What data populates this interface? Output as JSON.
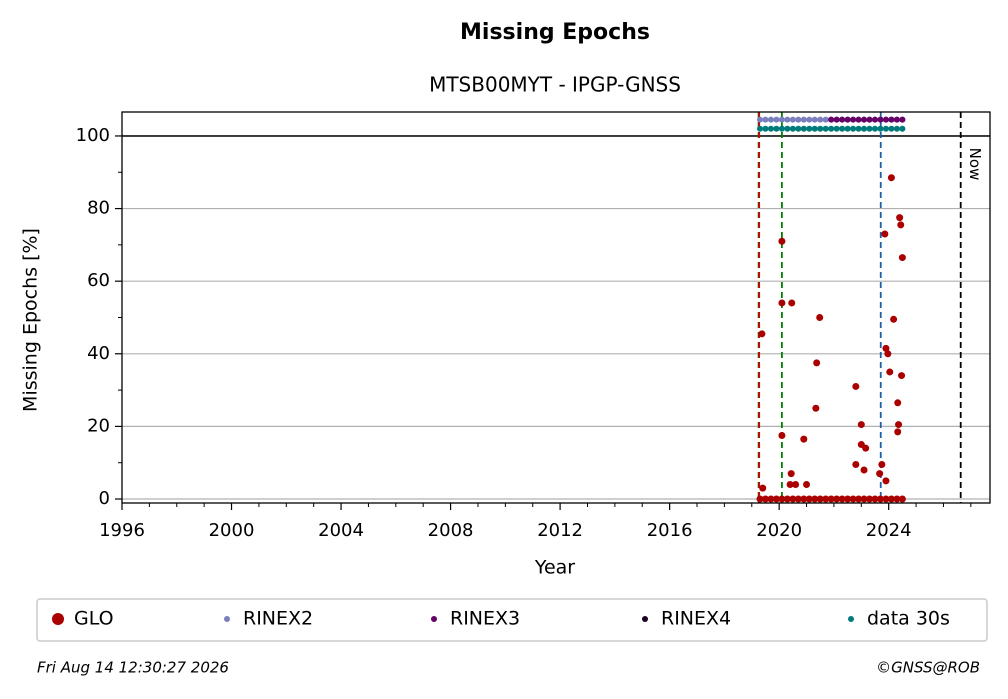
{
  "chart_data": {
    "type": "scatter",
    "title": "Missing Epochs",
    "subtitle": "MTSB00MYT - IPGP-GNSS",
    "x_label": "Year",
    "y_label": "Missing Epochs [%]",
    "xlim": [
      1996,
      2027.7
    ],
    "ylim": [
      -1.1,
      106.6
    ],
    "xticks": [
      1996,
      2000,
      2004,
      2008,
      2012,
      2016,
      2020,
      2024
    ],
    "xminorticks": [
      1997,
      1998,
      1999,
      2001,
      2002,
      2003,
      2005,
      2006,
      2007,
      2009,
      2010,
      2011,
      2013,
      2014,
      2015,
      2017,
      2018,
      2019,
      2021,
      2022,
      2023,
      2025,
      2026,
      2027
    ],
    "yticks": [
      0,
      20,
      40,
      60,
      80,
      100
    ],
    "yminorticks": [
      10,
      30,
      50,
      70,
      90
    ],
    "grid": true,
    "hline": 100,
    "vlines": [
      {
        "x": 2019.25,
        "color": "#008000"
      },
      {
        "x": 2019.27,
        "color": "#cc0000"
      },
      {
        "x": 2020.1,
        "color": "#008000"
      },
      {
        "x": 2023.71,
        "color": "#1f5faa"
      },
      {
        "x": 2026.63,
        "color": "#000000",
        "label": "Now"
      }
    ],
    "series": [
      {
        "name": "GLO",
        "color": "#aa0000",
        "size": 3.5,
        "x": [
          2019.37,
          2019.4,
          2020.1,
          2020.1,
          2020.1,
          2020.46,
          2020.44,
          2020.4,
          2020.6,
          2020.9,
          2021.0,
          2021.34,
          2021.37,
          2021.48,
          2022.8,
          2022.8,
          2023.0,
          2023.0,
          2023.16,
          2023.1,
          2023.67,
          2023.75,
          2023.86,
          2023.9,
          2023.97,
          2024.04,
          2024.1,
          2024.18,
          2024.33,
          2024.36,
          2024.33,
          2024.4,
          2024.44,
          2024.5,
          2024.47,
          2023.9,
          2019.3,
          2019.5,
          2019.7,
          2019.9,
          2020.1,
          2020.3,
          2020.5,
          2020.7,
          2020.9,
          2021.1,
          2021.3,
          2021.5,
          2021.7,
          2021.9,
          2022.1,
          2022.3,
          2022.5,
          2022.7,
          2022.9,
          2023.1,
          2023.3,
          2023.5,
          2023.7,
          2023.9,
          2024.1,
          2024.3,
          2024.5
        ],
        "values": [
          45.5,
          3,
          71,
          54,
          17.5,
          54,
          7,
          4,
          4,
          16.5,
          4,
          25,
          37.5,
          50,
          31,
          9.5,
          20.5,
          15,
          14,
          8,
          7,
          9.5,
          73,
          41.5,
          40,
          35,
          88.5,
          49.5,
          26.5,
          20.5,
          18.5,
          77.5,
          75.5,
          66.5,
          34,
          5,
          0,
          0,
          0,
          0,
          0,
          0,
          0,
          0,
          0,
          0,
          0,
          0,
          0,
          0,
          0,
          0,
          0,
          0,
          0,
          0,
          0,
          0,
          0,
          0,
          0,
          0,
          0
        ]
      },
      {
        "name": "RINEX2",
        "color": "#7b7fbf",
        "size": 3,
        "x": [
          2019.3,
          2019.5,
          2019.7,
          2019.9,
          2020.1,
          2020.3,
          2020.5,
          2020.7,
          2020.9,
          2021.1,
          2021.3,
          2021.5,
          2021.7,
          2021.9,
          2022.1,
          2022.3,
          2022.5,
          2022.7,
          2022.9,
          2023.1,
          2023.3,
          2023.5,
          2023.7,
          2023.9,
          2024.1,
          2024.3,
          2024.5
        ],
        "values": [
          104.5,
          104.5,
          104.5,
          104.5,
          104.5,
          104.5,
          104.5,
          104.5,
          104.5,
          104.5,
          104.5,
          104.5,
          104.5,
          104.5,
          104.5,
          104.5,
          104.5,
          104.5,
          104.5,
          104.5,
          104.5,
          104.5,
          104.5,
          104.5,
          104.5,
          104.5,
          104.5
        ]
      },
      {
        "name": "RINEX3",
        "color": "#660066",
        "size": 3,
        "x": [
          2021.9,
          2022.1,
          2022.3,
          2022.5,
          2022.7,
          2022.9,
          2023.1,
          2023.3,
          2023.5,
          2023.7,
          2023.9,
          2024.1,
          2024.3,
          2024.5
        ],
        "values": [
          104.5,
          104.5,
          104.5,
          104.5,
          104.5,
          104.5,
          104.5,
          104.5,
          104.5,
          104.5,
          104.5,
          104.5,
          104.5,
          104.5
        ]
      },
      {
        "name": "RINEX4",
        "color": "#1a0022",
        "size": 3,
        "x": [],
        "values": []
      },
      {
        "name": "data 30s",
        "color": "#007b7b",
        "size": 3,
        "x": [
          2019.3,
          2019.5,
          2019.7,
          2019.9,
          2020.1,
          2020.3,
          2020.5,
          2020.7,
          2020.9,
          2021.1,
          2021.3,
          2021.5,
          2021.7,
          2021.9,
          2022.1,
          2022.3,
          2022.5,
          2022.7,
          2022.9,
          2023.1,
          2023.3,
          2023.5,
          2023.7,
          2023.9,
          2024.1,
          2024.3,
          2024.5
        ],
        "values": [
          102,
          102,
          102,
          102,
          102,
          102,
          102,
          102,
          102,
          102,
          102,
          102,
          102,
          102,
          102,
          102,
          102,
          102,
          102,
          102,
          102,
          102,
          102,
          102,
          102,
          102,
          102
        ]
      }
    ],
    "legend": "bottom",
    "timestamp": "Fri Aug 14 12:30:27 2026",
    "credit": "©GNSS@ROB"
  }
}
